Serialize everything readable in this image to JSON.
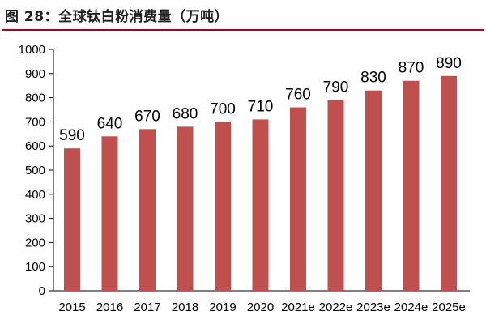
{
  "figure_title": "图 28：全球钛白粉消费量（万吨）",
  "chart_data": {
    "type": "bar",
    "title": "图 28：全球钛白粉消费量（万吨）",
    "categories": [
      "2015",
      "2016",
      "2017",
      "2018",
      "2019",
      "2020",
      "2021e",
      "2022e",
      "2023e",
      "2024e",
      "2025e"
    ],
    "values": [
      590,
      640,
      670,
      680,
      700,
      710,
      760,
      790,
      830,
      870,
      890
    ],
    "ylabel": "",
    "xlabel": "",
    "ylim": [
      0,
      1000
    ],
    "yticks": [
      "0",
      "100",
      "200",
      "300",
      "400",
      "500",
      "600",
      "700",
      "800",
      "900",
      "1000"
    ],
    "grid": false,
    "bar_color": "#c0504d"
  }
}
